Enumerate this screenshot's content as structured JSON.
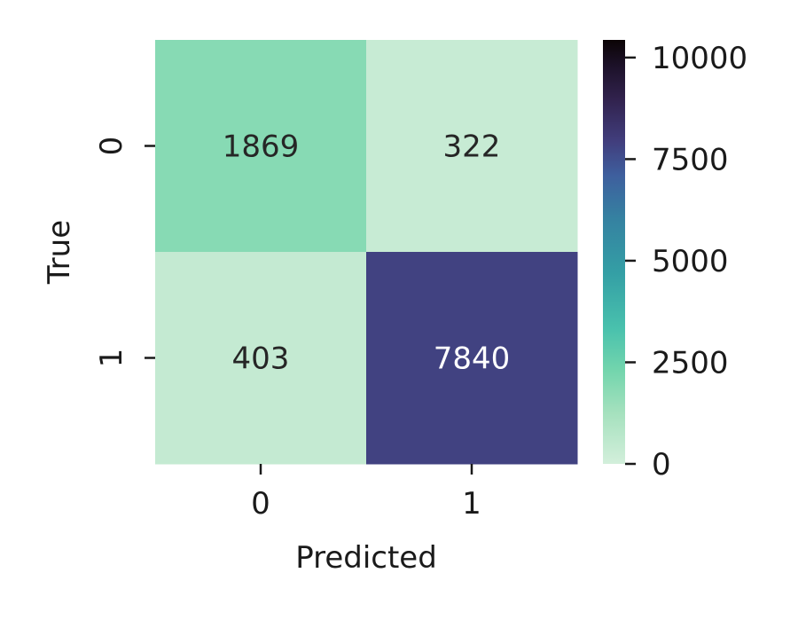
{
  "chart_data": {
    "type": "heatmap",
    "title": "",
    "xlabel": "Predicted",
    "ylabel": "True",
    "x_categories": [
      "0",
      "1"
    ],
    "y_categories": [
      "0",
      "1"
    ],
    "matrix": [
      [
        1869,
        322
      ],
      [
        403,
        7840
      ]
    ],
    "colorbar": {
      "min": 0,
      "max": 10434,
      "ticks": [
        0,
        2500,
        5000,
        7500,
        10000
      ],
      "tick_labels": [
        "0",
        "2500",
        "5000",
        "7500",
        "10000"
      ]
    },
    "colormap": "mako_r",
    "colors": {
      "low": "#d3efdb",
      "high": "#0b0405",
      "text_dark": "#262626",
      "text_light": "#ffffff"
    }
  }
}
